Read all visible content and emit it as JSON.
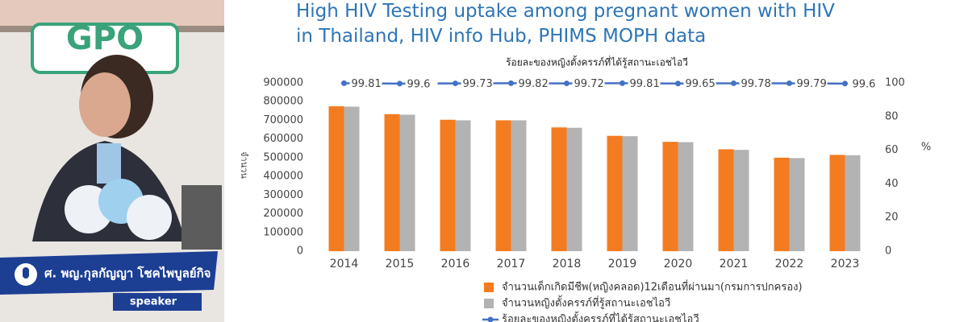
{
  "chart_data": {
    "type": "bar_line",
    "title": "High HIV Testing uptake among pregnant women with HIV in Thailand, HIV info Hub, PHIMS MOPH data",
    "subtitle": "ร้อยละของหญิงตั้งครรภ์ที่ได้รู้สถานะเอชไอวี",
    "y_label": "จำนวน",
    "y2_label": "%",
    "categories": [
      "2014",
      "2015",
      "2016",
      "2017",
      "2018",
      "2019",
      "2020",
      "2021",
      "2022",
      "2023"
    ],
    "series": [
      {
        "name": "จำนวนเด็กเกิดมีชีพ(หญิงคลอด)12เดือนที่ผ่านมา(กรมการปกครอง)",
        "color": "#f47c20",
        "type": "bar",
        "values": [
          775000,
          733000,
          703000,
          700000,
          662000,
          617000,
          585000,
          545000,
          500000,
          515000
        ]
      },
      {
        "name": "จำนวนหญิงตั้งครรภ์ที่รู้สถานะเอชไอวี",
        "color": "#b3b3b3",
        "type": "bar",
        "values": [
          773000,
          730000,
          700000,
          700000,
          660000,
          615000,
          583000,
          542000,
          498000,
          513000
        ]
      },
      {
        "name": "ร้อยละของหญิงตั้งครรภ์ที่ได้รู้สถานะเอชไอวี",
        "color": "#4472c4",
        "type": "line",
        "axis": "y2",
        "values": [
          99.81,
          99.6,
          99.73,
          99.82,
          99.72,
          99.81,
          99.65,
          99.78,
          99.79,
          99.6
        ]
      }
    ],
    "ylim": [
      0,
      900000
    ],
    "yticks": [
      0,
      100000,
      200000,
      300000,
      400000,
      500000,
      600000,
      700000,
      800000,
      900000
    ],
    "y2lim": [
      0,
      100
    ],
    "y2ticks": [
      0,
      20,
      40,
      60,
      80,
      100
    ]
  },
  "background_logo": "GPO",
  "speaker": {
    "name": "ศ. พญ.กุลกัญญา โชคไพบูลย์กิจ",
    "role": "speaker"
  }
}
